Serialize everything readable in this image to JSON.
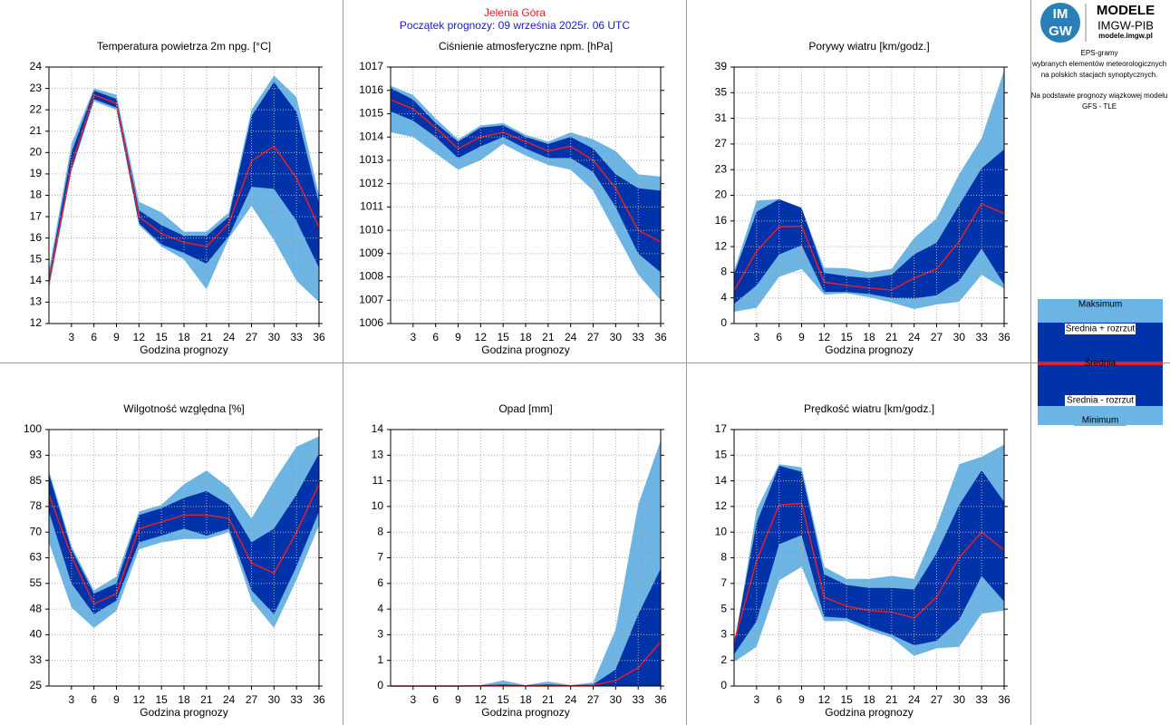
{
  "header": {
    "station": "Jelenia Góra",
    "start": "Początek prognozy: 09 września 2025r. 06 UTC"
  },
  "logo": {
    "mark_top": "IM",
    "mark_bottom": "GW",
    "name": "MODELE",
    "org": "IMGW-PIB",
    "url": "modele.imgw.pl"
  },
  "info": [
    "EPS-gramy",
    "wybranych elementów meteorologicznych",
    "na polskich stacjach  synoptycznych.",
    "Na podstawie prognozy wiązkowej modelu",
    "GFS - TLE"
  ],
  "legend": [
    {
      "name": "Maksimum",
      "color": "#6cb4e4"
    },
    {
      "name": "Średnia + rozrzut",
      "color": "#0033aa"
    },
    {
      "name": "Średnia",
      "color": "#e0202a"
    },
    {
      "name": "Średnia - rozrzut",
      "color": "#0033aa"
    },
    {
      "name": "Minimum",
      "color": "#6cb4e4"
    }
  ],
  "chart_data": [
    {
      "type": "band",
      "title": "Temperatura powietrza 2m npg. [°C]",
      "xlabel": "Godzina prognozy",
      "x": [
        0,
        3,
        6,
        9,
        12,
        15,
        18,
        21,
        24,
        27,
        30,
        33,
        36
      ],
      "xlim": [
        0,
        36
      ],
      "xticks": [
        3,
        6,
        9,
        12,
        15,
        18,
        21,
        24,
        27,
        30,
        33,
        36
      ],
      "ylim": [
        12,
        24
      ],
      "yticks": [
        12,
        13,
        14,
        15,
        16,
        17,
        18,
        19,
        20,
        21,
        22,
        23,
        24
      ],
      "grid": true,
      "series": [
        {
          "values": [
            14.5,
            20.4,
            23.0,
            22.7,
            17.7,
            17.2,
            16.3,
            16.3,
            17.2,
            22.0,
            23.6,
            22.6,
            18.0
          ]
        },
        {
          "values": [
            14.2,
            20.0,
            22.9,
            22.5,
            17.3,
            16.6,
            16.1,
            16.1,
            17.0,
            21.7,
            23.3,
            21.9,
            17.6
          ]
        },
        {
          "values": [
            14.0,
            19.4,
            22.7,
            22.3,
            17.0,
            16.2,
            15.8,
            15.6,
            16.7,
            19.6,
            20.3,
            18.8,
            16.5
          ]
        },
        {
          "values": [
            13.8,
            19.2,
            22.5,
            22.1,
            16.7,
            15.7,
            15.3,
            14.8,
            16.1,
            18.4,
            18.3,
            16.8,
            14.6
          ]
        },
        {
          "values": [
            13.6,
            19.1,
            22.4,
            22.0,
            16.6,
            15.6,
            15.0,
            13.6,
            16.0,
            17.5,
            15.9,
            14.0,
            13.0
          ]
        }
      ]
    },
    {
      "type": "band",
      "title": "Ciśnienie atmosferyczne npm. [hPa]",
      "xlabel": "Godzina prognozy",
      "x": [
        0,
        3,
        6,
        9,
        12,
        15,
        18,
        21,
        24,
        27,
        30,
        33,
        36
      ],
      "xlim": [
        0,
        36
      ],
      "xticks": [
        3,
        6,
        9,
        12,
        15,
        18,
        21,
        24,
        27,
        30,
        33,
        36
      ],
      "ylim": [
        1006,
        1017
      ],
      "yticks": [
        1006,
        1007,
        1008,
        1009,
        1010,
        1011,
        1012,
        1013,
        1014,
        1015,
        1016,
        1017
      ],
      "grid": true,
      "series": [
        {
          "values": [
            1016.2,
            1015.8,
            1014.8,
            1013.9,
            1014.5,
            1014.6,
            1014.1,
            1013.8,
            1014.2,
            1013.9,
            1013.4,
            1012.4,
            1012.3
          ]
        },
        {
          "values": [
            1016.1,
            1015.6,
            1014.6,
            1013.8,
            1014.4,
            1014.5,
            1014.0,
            1013.7,
            1014.0,
            1013.5,
            1012.4,
            1011.8,
            1011.7
          ]
        },
        {
          "values": [
            1015.6,
            1015.2,
            1014.4,
            1013.5,
            1014.0,
            1014.2,
            1013.8,
            1013.4,
            1013.6,
            1013.0,
            1011.8,
            1010.0,
            1009.5
          ]
        },
        {
          "values": [
            1015.1,
            1014.7,
            1014.0,
            1013.1,
            1013.6,
            1014.0,
            1013.5,
            1013.1,
            1013.1,
            1012.5,
            1011.0,
            1009.0,
            1008.2
          ]
        },
        {
          "values": [
            1014.2,
            1014.0,
            1013.3,
            1012.6,
            1013.0,
            1013.7,
            1013.2,
            1012.8,
            1012.6,
            1011.7,
            1009.9,
            1008.1,
            1007.0
          ]
        }
      ]
    },
    {
      "type": "band",
      "title": "Porywy wiatru [km/godz.]",
      "xlabel": "Godzina prognozy",
      "x": [
        0,
        3,
        6,
        9,
        12,
        15,
        18,
        21,
        24,
        27,
        30,
        33,
        36
      ],
      "xlim": [
        0,
        36
      ],
      "xticks": [
        3,
        6,
        9,
        12,
        15,
        18,
        21,
        24,
        27,
        30,
        33,
        36
      ],
      "ylim": [
        0,
        39
      ],
      "yticks": [
        0,
        {
          "value": 3.9,
          "label": "4"
        },
        {
          "value": 7.8,
          "label": "8"
        },
        {
          "value": 11.7,
          "label": "12"
        },
        {
          "value": 15.6,
          "label": "16"
        },
        {
          "value": 19.5,
          "label": "20"
        },
        {
          "value": 23.4,
          "label": "23"
        },
        {
          "value": 27.3,
          "label": "27"
        },
        {
          "value": 31.2,
          "label": "31"
        },
        {
          "value": 35.1,
          "label": "35"
        },
        39
      ],
      "grid": true,
      "series": [
        {
          "values": [
            8.0,
            18.7,
            18.9,
            17.5,
            8.5,
            8.4,
            7.8,
            8.3,
            13.0,
            16.0,
            22.7,
            28.2,
            38.5
          ]
        },
        {
          "values": [
            7.5,
            17.0,
            18.9,
            17.6,
            7.7,
            7.2,
            6.9,
            7.4,
            10.5,
            12.3,
            18.0,
            23.6,
            26.5
          ]
        },
        {
          "values": [
            5.0,
            11.0,
            14.7,
            14.8,
            6.3,
            5.8,
            5.4,
            5.1,
            6.9,
            8.3,
            12.5,
            18.2,
            16.7
          ]
        },
        {
          "values": [
            3.0,
            5.8,
            10.5,
            11.9,
            4.8,
            4.8,
            4.5,
            3.9,
            3.8,
            4.3,
            6.5,
            11.4,
            5.9
          ]
        },
        {
          "values": [
            1.8,
            2.4,
            7.1,
            8.3,
            4.4,
            4.6,
            4.0,
            3.2,
            2.2,
            2.9,
            3.3,
            7.4,
            5.3
          ]
        }
      ]
    },
    {
      "type": "band",
      "title": "Wilgotność względna [%]",
      "xlabel": "Godzina prognozy",
      "x": [
        0,
        3,
        6,
        9,
        12,
        15,
        18,
        21,
        24,
        27,
        30,
        33,
        36
      ],
      "xlim": [
        0,
        36
      ],
      "xticks": [
        3,
        6,
        9,
        12,
        15,
        18,
        21,
        24,
        27,
        30,
        33,
        36
      ],
      "ylim": [
        25,
        100
      ],
      "yticks": [
        25,
        {
          "value": 32.5,
          "label": "33"
        },
        40,
        {
          "value": 47.5,
          "label": "48"
        },
        55,
        {
          "value": 62.5,
          "label": "63"
        },
        70,
        {
          "value": 77.5,
          "label": "78"
        },
        85,
        {
          "value": 92.5,
          "label": "93"
        },
        100
      ],
      "grid": true,
      "series": [
        {
          "values": [
            88,
            66,
            53,
            57,
            76,
            78,
            84,
            88,
            83,
            74,
            85,
            95,
            98
          ]
        },
        {
          "values": [
            87,
            65,
            52,
            55,
            75,
            77,
            80,
            82,
            78,
            67,
            71,
            81,
            93
          ]
        },
        {
          "values": [
            81,
            63,
            49,
            52,
            71,
            73,
            75,
            75,
            74,
            61,
            58,
            70,
            84
          ]
        },
        {
          "values": [
            76,
            55,
            46,
            50,
            67,
            69,
            71,
            69,
            71,
            53,
            46,
            60,
            76
          ]
        },
        {
          "values": [
            67,
            48,
            42,
            47,
            65,
            67,
            68,
            68,
            70,
            50,
            42,
            56,
            72
          ]
        }
      ]
    },
    {
      "type": "band",
      "title": "Opad [mm]",
      "xlabel": "Godzina prognozy",
      "x": [
        0,
        3,
        6,
        9,
        12,
        15,
        18,
        21,
        24,
        27,
        30,
        33,
        36
      ],
      "xlim": [
        0,
        36
      ],
      "xticks": [
        3,
        6,
        9,
        12,
        15,
        18,
        21,
        24,
        27,
        30,
        33,
        36
      ],
      "ylim": [
        0,
        14
      ],
      "yticks": [
        0,
        {
          "value": 1.4,
          "label": "1"
        },
        {
          "value": 2.8,
          "label": "3"
        },
        {
          "value": 4.2,
          "label": "4"
        },
        {
          "value": 5.6,
          "label": "6"
        },
        7,
        {
          "value": 8.4,
          "label": "8"
        },
        {
          "value": 9.8,
          "label": "10"
        },
        {
          "value": 11.2,
          "label": "11"
        },
        {
          "value": 12.6,
          "label": "13"
        },
        14
      ],
      "grid": true,
      "series": [
        {
          "values": [
            0,
            0,
            0,
            0,
            0.05,
            0.3,
            0.05,
            0.25,
            0.05,
            0.2,
            3.1,
            9.9,
            13.4
          ]
        },
        {
          "values": [
            0,
            0,
            0,
            0,
            0.02,
            0.1,
            0.02,
            0.1,
            0.02,
            0.08,
            0.9,
            3.9,
            6.4
          ]
        },
        {
          "values": [
            0,
            0,
            0,
            0,
            0.01,
            0.05,
            0.01,
            0.05,
            0.01,
            0.05,
            0.3,
            1.0,
            2.4
          ]
        },
        {
          "values": [
            0,
            0,
            0,
            0,
            0,
            0,
            0,
            0,
            0,
            0,
            0,
            0,
            0
          ]
        },
        {
          "values": [
            0,
            0,
            0,
            0,
            0,
            0,
            0,
            0,
            0,
            0,
            0,
            0,
            0
          ]
        }
      ]
    },
    {
      "type": "band",
      "title": "Prędkość wiatru [km/godz.]",
      "xlabel": "Godzina prognozy",
      "x": [
        0,
        3,
        6,
        9,
        12,
        15,
        18,
        21,
        24,
        27,
        30,
        33,
        36
      ],
      "xlim": [
        0,
        36
      ],
      "xticks": [
        3,
        6,
        9,
        12,
        15,
        18,
        21,
        24,
        27,
        30,
        33,
        36
      ],
      "ylim": [
        0,
        17
      ],
      "yticks": [
        0,
        {
          "value": 1.7,
          "label": "2"
        },
        {
          "value": 3.4,
          "label": "3"
        },
        {
          "value": 5.1,
          "label": "5"
        },
        {
          "value": 6.8,
          "label": "7"
        },
        {
          "value": 8.5,
          "label": "8"
        },
        {
          "value": 10.2,
          "label": "10"
        },
        {
          "value": 11.9,
          "label": "12"
        },
        {
          "value": 13.6,
          "label": "14"
        },
        {
          "value": 15.3,
          "label": "15"
        },
        17
      ],
      "grid": true,
      "series": [
        {
          "values": [
            2.5,
            11.7,
            14.7,
            14.5,
            7.9,
            7.1,
            7.1,
            7.3,
            7.1,
            10.6,
            14.7,
            15.2,
            16.0
          ]
        },
        {
          "values": [
            2.8,
            10.8,
            14.6,
            14.2,
            7.4,
            6.7,
            6.5,
            6.5,
            6.4,
            8.8,
            12.0,
            14.3,
            12.2
          ]
        },
        {
          "values": [
            2.9,
            8.3,
            12.0,
            12.1,
            5.9,
            5.3,
            5.0,
            4.9,
            4.5,
            5.9,
            8.5,
            10.2,
            9.0
          ]
        },
        {
          "values": [
            2.1,
            4.3,
            9.4,
            10.0,
            4.6,
            4.5,
            3.9,
            3.4,
            2.7,
            3.0,
            4.4,
            7.3,
            5.6
          ]
        },
        {
          "values": [
            1.6,
            2.6,
            7.0,
            7.9,
            4.3,
            4.3,
            3.7,
            3.2,
            2.0,
            2.5,
            2.6,
            4.8,
            5.0
          ]
        }
      ]
    }
  ]
}
